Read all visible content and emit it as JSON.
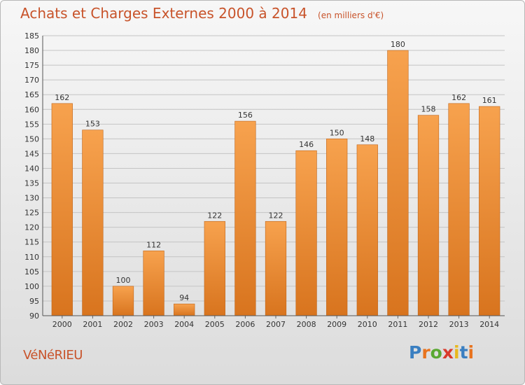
{
  "header": {
    "title": "Achats et Charges Externes 2000 à 2014",
    "unit": "(en milliers d'€)"
  },
  "footer": {
    "commune": "VéNéRIEU",
    "brand_letters": [
      "P",
      "r",
      "o",
      "x",
      "i",
      "t",
      "i"
    ],
    "brand_colors": [
      "#3a7fc1",
      "#e8731e",
      "#5aa832",
      "#d93a2b",
      "#e8b81e",
      "#3a7fc1",
      "#e8731e"
    ]
  },
  "colors": {
    "bar_top": "#f7a24e",
    "bar_bottom": "#d8741e",
    "bar_edge": "#c0651a",
    "axis_text": "#333333"
  },
  "chart_data": {
    "type": "bar",
    "categories": [
      "2000",
      "2001",
      "2002",
      "2003",
      "2004",
      "2005",
      "2006",
      "2007",
      "2008",
      "2009",
      "2010",
      "2011",
      "2012",
      "2013",
      "2014"
    ],
    "values": [
      162,
      153,
      100,
      112,
      94,
      122,
      156,
      122,
      146,
      150,
      148,
      180,
      158,
      162,
      161
    ],
    "ylim": [
      90,
      185
    ],
    "yticks": [
      90,
      95,
      100,
      105,
      110,
      115,
      120,
      125,
      130,
      135,
      140,
      145,
      150,
      155,
      160,
      165,
      170,
      175,
      180,
      185
    ],
    "grid": true,
    "data_labels": true
  }
}
